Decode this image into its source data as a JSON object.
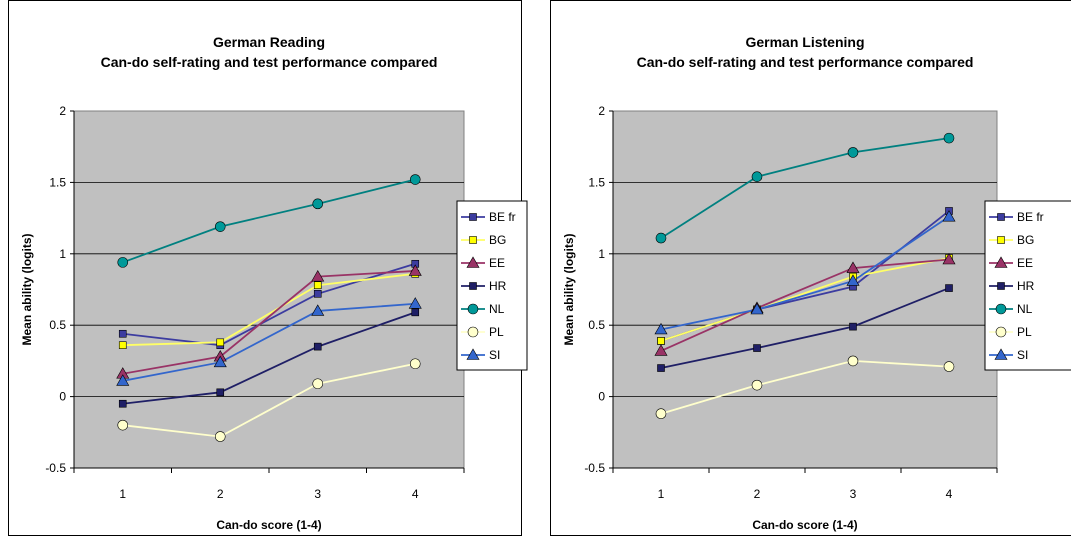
{
  "chart_data": [
    {
      "type": "line",
      "title": "German Reading",
      "subtitle": "Can-do self-rating and test performance compared",
      "xlabel": "Can-do score  (1-4)",
      "ylabel": "Mean ability (logits)",
      "categories": [
        "1",
        "2",
        "3",
        "4"
      ],
      "ylim": [
        -0.5,
        2
      ],
      "yticks": [
        "-0.5",
        "0",
        "0.5",
        "1",
        "1.5",
        "2"
      ],
      "grid": true,
      "legend": "right",
      "plot_bg": "#c0c0c0",
      "series": [
        {
          "name": "BE fr",
          "values": [
            0.44,
            0.36,
            0.72,
            0.93
          ],
          "color": "#3c3ca0",
          "marker": "square",
          "fill": "#3c3ca0"
        },
        {
          "name": "BG",
          "values": [
            0.36,
            0.38,
            0.78,
            0.86
          ],
          "color": "#ffff66",
          "marker": "square",
          "fill": "#ffff00"
        },
        {
          "name": "EE",
          "values": [
            0.16,
            0.28,
            0.84,
            0.88
          ],
          "color": "#993366",
          "marker": "triangle",
          "fill": "#993366"
        },
        {
          "name": "HR",
          "values": [
            -0.05,
            0.03,
            0.35,
            0.59
          ],
          "color": "#1f1f66",
          "marker": "square",
          "fill": "#1f1f66"
        },
        {
          "name": "NL",
          "values": [
            0.94,
            1.19,
            1.35,
            1.52
          ],
          "color": "#008080",
          "marker": "circle",
          "fill": "#009999"
        },
        {
          "name": "PL",
          "values": [
            -0.2,
            -0.28,
            0.09,
            0.23
          ],
          "color": "#ffffcc",
          "marker": "circle",
          "fill": "#ffffcc"
        },
        {
          "name": "SI",
          "values": [
            0.11,
            0.24,
            0.6,
            0.65
          ],
          "color": "#3366cc",
          "marker": "triangle",
          "fill": "#3366cc"
        }
      ]
    },
    {
      "type": "line",
      "title": "German Listening",
      "subtitle": "Can-do self-rating and test performance compared",
      "xlabel": "Can-do score  (1-4)",
      "ylabel": "Mean ability (logits)",
      "categories": [
        "1",
        "2",
        "3",
        "4"
      ],
      "ylim": [
        -0.5,
        2
      ],
      "yticks": [
        "-0.5",
        "0",
        "0.5",
        "1",
        "1.5",
        "2"
      ],
      "grid": true,
      "legend": "right",
      "plot_bg": "#c0c0c0",
      "series": [
        {
          "name": "BE fr",
          "values": [
            0.39,
            0.61,
            0.77,
            1.3
          ],
          "color": "#3c3ca0",
          "marker": "square",
          "fill": "#3c3ca0"
        },
        {
          "name": "BG",
          "values": [
            0.39,
            0.61,
            0.84,
            0.97
          ],
          "color": "#ffff66",
          "marker": "square",
          "fill": "#ffff00"
        },
        {
          "name": "EE",
          "values": [
            0.32,
            0.62,
            0.9,
            0.96
          ],
          "color": "#993366",
          "marker": "triangle",
          "fill": "#993366"
        },
        {
          "name": "HR",
          "values": [
            0.2,
            0.34,
            0.49,
            0.76
          ],
          "color": "#1f1f66",
          "marker": "square",
          "fill": "#1f1f66"
        },
        {
          "name": "NL",
          "values": [
            1.11,
            1.54,
            1.71,
            1.81
          ],
          "color": "#008080",
          "marker": "circle",
          "fill": "#009999"
        },
        {
          "name": "PL",
          "values": [
            -0.12,
            0.08,
            0.25,
            0.21
          ],
          "color": "#ffffcc",
          "marker": "circle",
          "fill": "#ffffcc"
        },
        {
          "name": "SI",
          "values": [
            0.47,
            0.61,
            0.81,
            1.26
          ],
          "color": "#3366cc",
          "marker": "triangle",
          "fill": "#3366cc"
        }
      ]
    }
  ]
}
